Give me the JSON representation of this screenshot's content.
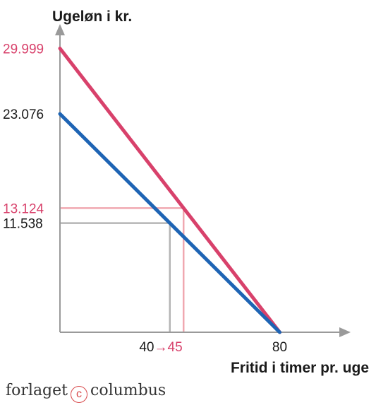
{
  "chart_data": {
    "type": "line",
    "ylabel": "Ugeløn i kr.",
    "xlabel": "Fritid i timer pr. uge",
    "xlim": [
      0,
      113
    ],
    "ylim": [
      0,
      32500
    ],
    "x_ticks": [
      80
    ],
    "y_ticks": [
      {
        "value": 29999,
        "label": "29.999",
        "color": "#d8416b"
      },
      {
        "value": 23076,
        "label": "23.076",
        "color": "#1a1a1a"
      },
      {
        "value": 13124,
        "label": "13.124",
        "color": "#d8416b"
      },
      {
        "value": 11538,
        "label": "11.538",
        "color": "#1a1a1a"
      }
    ],
    "series": [
      {
        "color": "#d8416b",
        "x": [
          0,
          80
        ],
        "y": [
          29999,
          0
        ]
      },
      {
        "color": "#1e64b4",
        "x": [
          0,
          80
        ],
        "y": [
          23076,
          0
        ]
      }
    ],
    "guides": [
      {
        "x": 40,
        "y": 11538,
        "color": "#b4b4b4"
      },
      {
        "x": 45,
        "y": 13124,
        "color": "#f0a8b0"
      }
    ],
    "x_annotation": {
      "from": "40",
      "arrow": "→",
      "to": "45",
      "from_color": "#1a1a1a",
      "to_color": "#d8416b"
    },
    "axis_color": "#9a9a9a",
    "grid": false
  },
  "publisher": {
    "name_left": "forlaget",
    "copyright_symbol": "c",
    "name_right": "columbus"
  }
}
